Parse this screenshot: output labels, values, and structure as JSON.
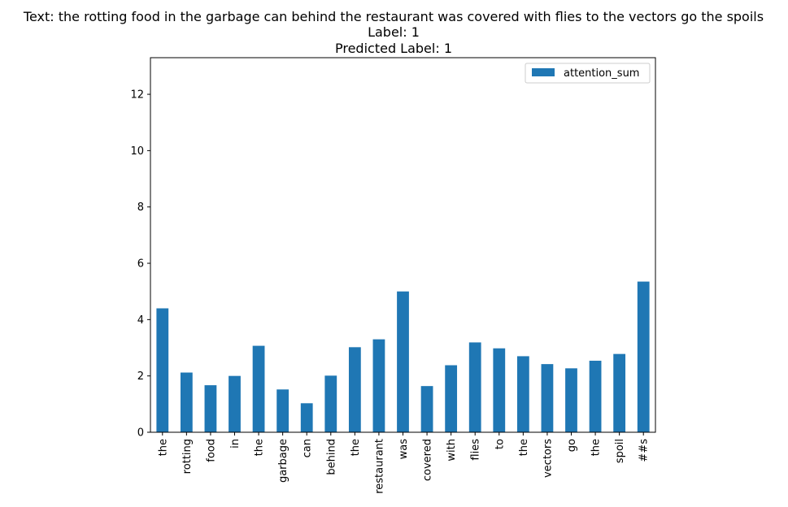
{
  "chart_data": {
    "type": "bar",
    "title_lines": [
      "Text: the rotting food in the garbage can behind the restaurant was covered with flies to the vectors go the spoils",
      "Label: 1",
      "Predicted Label: 1"
    ],
    "categories": [
      "the",
      "rotting",
      "food",
      "in",
      "the",
      "garbage",
      "can",
      "behind",
      "the",
      "restaurant",
      "was",
      "covered",
      "with",
      "flies",
      "to",
      "the",
      "vectors",
      "go",
      "the",
      "spoil",
      "##s"
    ],
    "series": [
      {
        "name": "attention_sum",
        "color": "#1f77b4",
        "values": [
          4.4,
          2.12,
          1.67,
          2.0,
          3.07,
          1.52,
          1.03,
          2.01,
          3.02,
          3.3,
          5.0,
          1.64,
          2.38,
          3.19,
          2.98,
          2.7,
          2.42,
          2.27,
          2.54,
          2.78,
          5.35
        ]
      }
    ],
    "yticks": [
      0,
      2,
      4,
      6,
      8,
      10,
      12
    ],
    "ylim": [
      0,
      13.3
    ],
    "xlabel": "",
    "ylabel": "",
    "grid": false,
    "legend_position": "top-right"
  }
}
